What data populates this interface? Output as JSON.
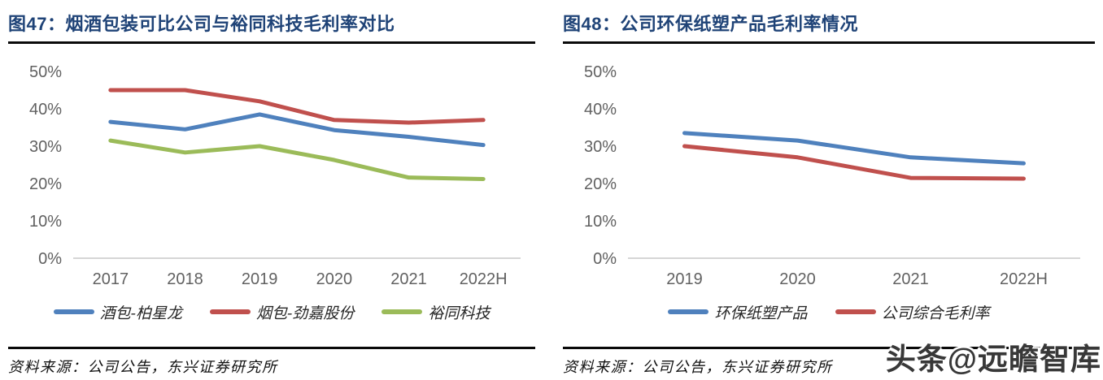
{
  "figures": [
    {
      "caption": "图47：烟酒包装可比公司与裕同科技毛利率对比",
      "source": "资料来源：公司公告，东兴证券研究所"
    },
    {
      "caption": "图48：公司环保纸塑产品毛利率情况",
      "source": "资料来源：公司公告，东兴证券研究所"
    }
  ],
  "watermark": {
    "text": "头条@远瞻智库"
  },
  "colors": {
    "title_blue": "#1F4377",
    "axis_gray": "#616161",
    "baseline_gray": "#C9C9C9",
    "series_blue": "#4F81BD",
    "series_red": "#C0504D",
    "series_green": "#9BBB59"
  },
  "chart_data": [
    {
      "type": "line",
      "title": "图47：烟酒包装可比公司与裕同科技毛利率对比",
      "categories": [
        "2017",
        "2018",
        "2019",
        "2020",
        "2021",
        "2022H"
      ],
      "series": [
        {
          "name": "酒包-柏星龙",
          "color": "#4F81BD",
          "values": [
            36.5,
            34.5,
            38.5,
            34.3,
            32.5,
            30.3
          ]
        },
        {
          "name": "烟包-劲嘉股份",
          "color": "#C0504D",
          "values": [
            45.0,
            45.0,
            42.0,
            37.0,
            36.3,
            37.0
          ]
        },
        {
          "name": "裕同科技",
          "color": "#9BBB59",
          "values": [
            31.5,
            28.3,
            30.0,
            26.3,
            21.6,
            21.2
          ]
        }
      ],
      "xlabel": "",
      "ylabel": "",
      "ylim": [
        0,
        50
      ],
      "y_ticks": [
        "0%",
        "10%",
        "20%",
        "30%",
        "40%",
        "50%"
      ],
      "grid": false,
      "legend_position": "bottom"
    },
    {
      "type": "line",
      "title": "图48：公司环保纸塑产品毛利率情况",
      "categories": [
        "2019",
        "2020",
        "2021",
        "2022H"
      ],
      "series": [
        {
          "name": "环保纸塑产品",
          "color": "#4F81BD",
          "values": [
            33.5,
            31.5,
            27.0,
            25.4
          ]
        },
        {
          "name": "公司综合毛利率",
          "color": "#C0504D",
          "values": [
            30.0,
            27.0,
            21.5,
            21.3
          ]
        }
      ],
      "xlabel": "",
      "ylabel": "",
      "ylim": [
        0,
        50
      ],
      "y_ticks": [
        "0%",
        "10%",
        "20%",
        "30%",
        "40%",
        "50%"
      ],
      "grid": false,
      "legend_position": "bottom"
    }
  ]
}
